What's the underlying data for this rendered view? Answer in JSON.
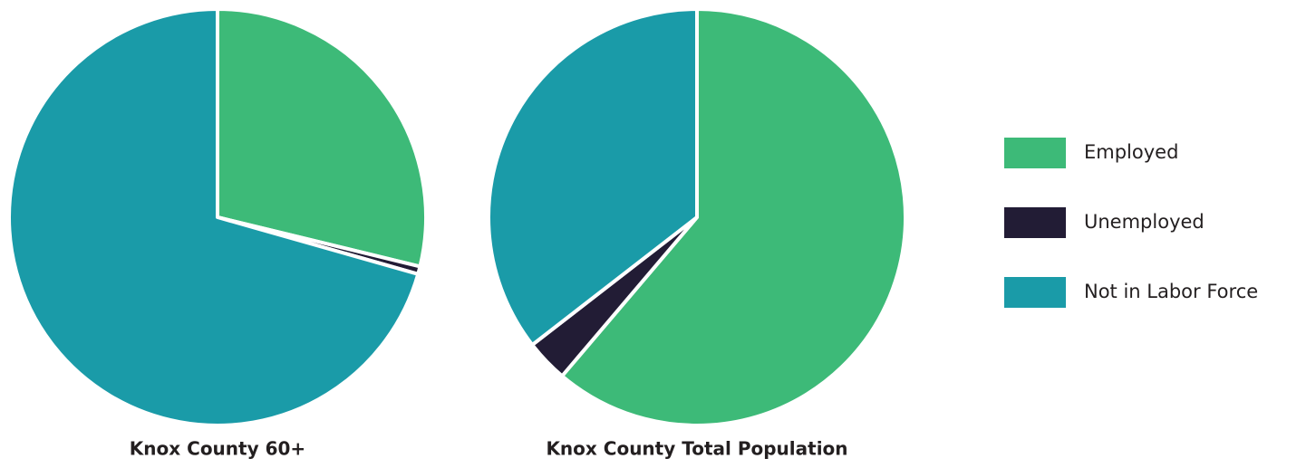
{
  "chart_data": [
    {
      "type": "pie",
      "title": "Knox County 60+",
      "categories": [
        "Employed",
        "Unemployed",
        "Not in Labor Force"
      ],
      "values": [
        28.8,
        0.6,
        70.6
      ],
      "colors": [
        "#3dba78",
        "#221c35",
        "#1a9ba8"
      ]
    },
    {
      "type": "pie",
      "title": "Knox County Total Population",
      "categories": [
        "Employed",
        "Unemployed",
        "Not in Labor Force"
      ],
      "values": [
        61.2,
        3.3,
        35.5
      ],
      "colors": [
        "#3dba78",
        "#221c35",
        "#1a9ba8"
      ]
    }
  ]
}
